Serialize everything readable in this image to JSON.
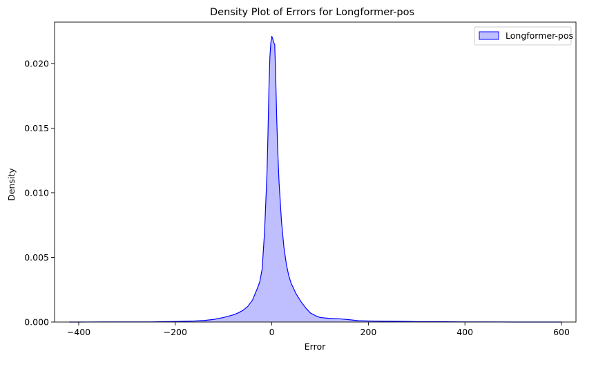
{
  "chart_data": {
    "type": "area",
    "title": "Density Plot of Errors for Longformer-pos",
    "xlabel": "Error",
    "ylabel": "Density",
    "xlim": [
      -450,
      630
    ],
    "ylim": [
      0,
      0.0232
    ],
    "xticks": [
      -400,
      -200,
      0,
      200,
      400,
      600
    ],
    "xtick_labels": [
      "−400",
      "−200",
      "0",
      "200",
      "400",
      "600"
    ],
    "yticks": [
      0.0,
      0.005,
      0.01,
      0.015,
      0.02
    ],
    "ytick_labels": [
      "0.000",
      "0.005",
      "0.010",
      "0.015",
      "0.020"
    ],
    "grid": false,
    "legend_position": "top-right",
    "series": [
      {
        "name": "Longformer-pos",
        "color": "#0000ff",
        "fill_color": "#0000ff",
        "fill_opacity": 0.25,
        "x": [
          -420,
          -400,
          -350,
          -300,
          -250,
          -220,
          -200,
          -180,
          -160,
          -140,
          -120,
          -100,
          -90,
          -80,
          -70,
          -60,
          -50,
          -40,
          -30,
          -25,
          -20,
          -15,
          -10,
          -8,
          -6,
          -4,
          -2,
          0,
          2,
          4,
          6,
          8,
          10,
          12,
          15,
          20,
          25,
          30,
          35,
          40,
          50,
          60,
          70,
          80,
          90,
          100,
          120,
          140,
          160,
          180,
          200,
          240,
          280,
          300,
          340,
          360,
          400,
          450,
          500,
          550,
          600
        ],
        "y": [
          0,
          0,
          1e-05,
          1e-05,
          1e-05,
          3e-05,
          4e-05,
          6e-05,
          8e-05,
          0.00012,
          0.0002,
          0.00035,
          0.00045,
          0.00055,
          0.0007,
          0.0009,
          0.0012,
          0.0017,
          0.0026,
          0.0031,
          0.0041,
          0.007,
          0.0115,
          0.0145,
          0.018,
          0.0205,
          0.0216,
          0.0221,
          0.0219,
          0.0216,
          0.0215,
          0.019,
          0.016,
          0.0135,
          0.0108,
          0.0078,
          0.0058,
          0.0045,
          0.0036,
          0.003,
          0.0022,
          0.0016,
          0.0011,
          0.0007,
          0.0005,
          0.00035,
          0.00028,
          0.00025,
          0.00018,
          0.0001,
          8e-05,
          6e-05,
          5e-05,
          3e-05,
          3e-05,
          2e-05,
          1e-05,
          1e-05,
          0,
          0,
          0
        ]
      }
    ]
  }
}
